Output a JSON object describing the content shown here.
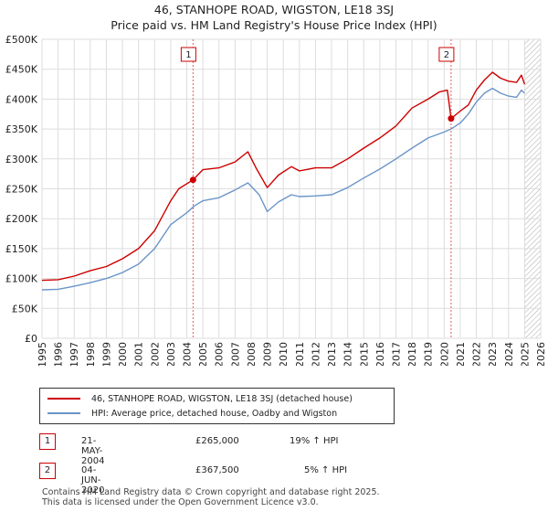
{
  "chart_data": {
    "type": "line",
    "title": "46, STANHOPE ROAD, WIGSTON, LE18 3SJ",
    "subtitle": "Price paid vs. HM Land Registry's House Price Index (HPI)",
    "xlim": [
      1995,
      2026
    ],
    "ylim": [
      0,
      500000
    ],
    "y_ticks": [
      0,
      50000,
      100000,
      150000,
      200000,
      250000,
      300000,
      350000,
      400000,
      450000,
      500000
    ],
    "y_tick_labels": [
      "£0",
      "£50K",
      "£100K",
      "£150K",
      "£200K",
      "£250K",
      "£300K",
      "£350K",
      "£400K",
      "£450K",
      "£500K"
    ],
    "x_ticks": [
      1995,
      1996,
      1997,
      1998,
      1999,
      2000,
      2001,
      2002,
      2003,
      2004,
      2005,
      2006,
      2007,
      2008,
      2009,
      2010,
      2011,
      2012,
      2013,
      2014,
      2015,
      2016,
      2017,
      2018,
      2019,
      2020,
      2021,
      2022,
      2023,
      2024,
      2025,
      2026
    ],
    "grid": true,
    "hatched_region_start": 2025.0,
    "series": [
      {
        "name": "46, STANHOPE ROAD, WIGSTON, LE18 3SJ (detached house)",
        "color": "#cc0000",
        "points": [
          [
            1995.0,
            97000
          ],
          [
            1996.0,
            98000
          ],
          [
            1997.0,
            104000
          ],
          [
            1998.0,
            113000
          ],
          [
            1999.0,
            120000
          ],
          [
            2000.0,
            133000
          ],
          [
            2001.0,
            150000
          ],
          [
            2002.0,
            180000
          ],
          [
            2003.0,
            230000
          ],
          [
            2003.5,
            250000
          ],
          [
            2004.39,
            265000
          ],
          [
            2005.0,
            282000
          ],
          [
            2006.0,
            285000
          ],
          [
            2007.0,
            295000
          ],
          [
            2007.8,
            312000
          ],
          [
            2008.3,
            285000
          ],
          [
            2009.0,
            252000
          ],
          [
            2009.7,
            273000
          ],
          [
            2010.5,
            287000
          ],
          [
            2011.0,
            280000
          ],
          [
            2012.0,
            285000
          ],
          [
            2013.0,
            285000
          ],
          [
            2014.0,
            300000
          ],
          [
            2015.0,
            318000
          ],
          [
            2016.0,
            335000
          ],
          [
            2017.0,
            355000
          ],
          [
            2018.0,
            385000
          ],
          [
            2019.0,
            400000
          ],
          [
            2019.7,
            412000
          ],
          [
            2020.2,
            415000
          ],
          [
            2020.43,
            367500
          ],
          [
            2021.0,
            380000
          ],
          [
            2021.5,
            390000
          ],
          [
            2022.0,
            415000
          ],
          [
            2022.5,
            432000
          ],
          [
            2023.0,
            445000
          ],
          [
            2023.5,
            435000
          ],
          [
            2024.0,
            430000
          ],
          [
            2024.5,
            428000
          ],
          [
            2024.8,
            440000
          ],
          [
            2025.0,
            425000
          ]
        ]
      },
      {
        "name": "HPI: Average price, detached house, Oadby and Wigston",
        "color": "#6a95c8",
        "points": [
          [
            1995.0,
            81000
          ],
          [
            1996.0,
            82000
          ],
          [
            1997.0,
            87000
          ],
          [
            1998.0,
            93000
          ],
          [
            1999.0,
            100000
          ],
          [
            2000.0,
            110000
          ],
          [
            2001.0,
            124000
          ],
          [
            2002.0,
            150000
          ],
          [
            2003.0,
            190000
          ],
          [
            2004.0,
            210000
          ],
          [
            2004.5,
            222000
          ],
          [
            2005.0,
            230000
          ],
          [
            2006.0,
            235000
          ],
          [
            2007.0,
            248000
          ],
          [
            2007.8,
            260000
          ],
          [
            2008.5,
            240000
          ],
          [
            2009.0,
            212000
          ],
          [
            2009.7,
            228000
          ],
          [
            2010.5,
            240000
          ],
          [
            2011.0,
            237000
          ],
          [
            2012.0,
            238000
          ],
          [
            2013.0,
            240000
          ],
          [
            2014.0,
            252000
          ],
          [
            2015.0,
            268000
          ],
          [
            2016.0,
            283000
          ],
          [
            2017.0,
            300000
          ],
          [
            2018.0,
            318000
          ],
          [
            2019.0,
            335000
          ],
          [
            2020.0,
            345000
          ],
          [
            2020.43,
            350000
          ],
          [
            2021.0,
            360000
          ],
          [
            2021.5,
            375000
          ],
          [
            2022.0,
            395000
          ],
          [
            2022.5,
            410000
          ],
          [
            2023.0,
            418000
          ],
          [
            2023.5,
            410000
          ],
          [
            2024.0,
            405000
          ],
          [
            2024.5,
            403000
          ],
          [
            2024.8,
            415000
          ],
          [
            2025.0,
            410000
          ]
        ]
      }
    ],
    "annotations": [
      {
        "label": "1",
        "x": 2004.39,
        "y": 265000
      },
      {
        "label": "2",
        "x": 2020.43,
        "y": 367500
      }
    ]
  },
  "legend": {
    "items": [
      {
        "label": "46, STANHOPE ROAD, WIGSTON, LE18 3SJ (detached house)",
        "color": "#cc0000"
      },
      {
        "label": "HPI: Average price, detached house, Oadby and Wigston",
        "color": "#6a95c8"
      }
    ]
  },
  "transactions": [
    {
      "marker": "1",
      "date": "21-MAY-2004",
      "price": "£265,000",
      "hpi_change": "19% ↑ HPI"
    },
    {
      "marker": "2",
      "date": "04-JUN-2020",
      "price": "£367,500",
      "hpi_change": "5% ↑ HPI"
    }
  ],
  "footer": {
    "line1": "Contains HM Land Registry data © Crown copyright and database right 2025.",
    "line2": "This data is licensed under the Open Government Licence v3.0."
  }
}
